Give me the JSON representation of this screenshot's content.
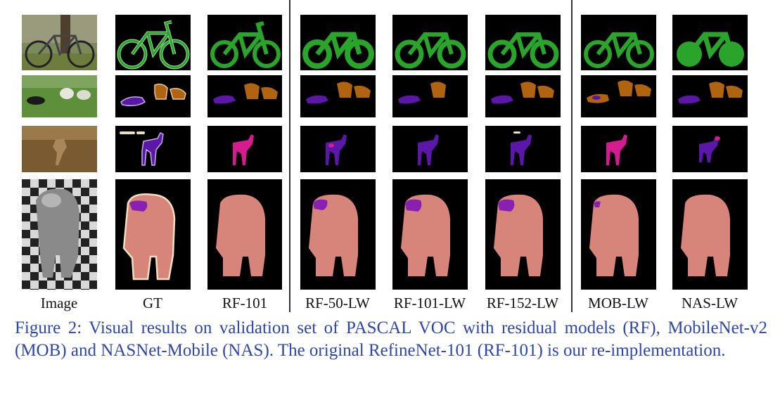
{
  "figure": {
    "columns": [
      {
        "label": "Image"
      },
      {
        "label": "GT"
      },
      {
        "label": "RF-101"
      },
      {
        "label": "RF-50-LW"
      },
      {
        "label": "RF-101-LW"
      },
      {
        "label": "RF-152-LW"
      },
      {
        "label": "MOB-LW"
      },
      {
        "label": "NAS-LW"
      }
    ],
    "rows": [
      {
        "subject": "bicycle",
        "mask_color": "#2ba42b",
        "gt_outline": "#9fd89f"
      },
      {
        "subject": "dogs and sheep",
        "mask_color_purple": "#5b17a8",
        "mask_color_brown": "#b0640f"
      },
      {
        "subject": "deer",
        "mask_color": "#5b17a8",
        "alt_color": "#d41b8f"
      },
      {
        "subject": "person",
        "mask_color": "#d7847b",
        "hat_color": "#8a1fb3"
      }
    ],
    "caption": "Figure 2: Visual results on validation set of PASCAL VOC with residual models (RF), MobileNet-v2 (MOB) and NASNet-Mobile (NAS). The original RefineNet-101 (RF-101) is our re-implementation."
  },
  "colors": {
    "caption_text": "#2e46a5",
    "mask_background": "#000000",
    "bicycle_green": "#2ba42b",
    "dog_purple": "#5b17a8",
    "sheep_brown": "#b0640f",
    "deer_magenta": "#d41b8f",
    "person_pink": "#d7847b",
    "hat_purple": "#8a1fb3"
  }
}
